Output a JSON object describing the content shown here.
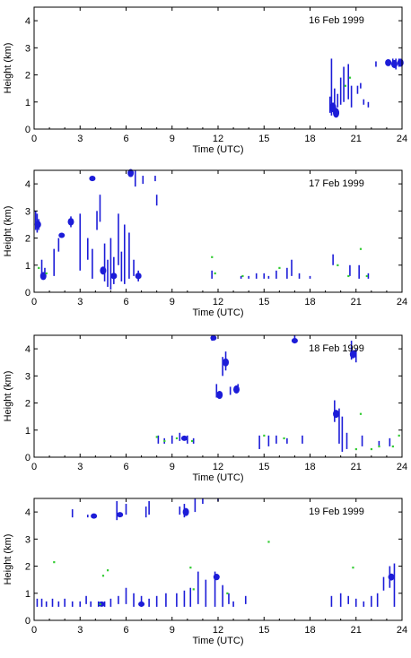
{
  "colors": {
    "echo": "#1c1cd8",
    "marker": "#33cc33",
    "frame": "#000000"
  },
  "chart_data": [
    {
      "type": "scatter",
      "annotation": "16 Feb 1999",
      "xlabel": "Time (UTC)",
      "ylabel": "Height (km)",
      "xlim": [
        0,
        24
      ],
      "ylim": [
        0,
        4.5
      ],
      "xticks": [
        "0",
        "3",
        "6",
        "9",
        "12",
        "15",
        "18",
        "21",
        "24"
      ],
      "yticks": [
        "0",
        "1",
        "2",
        "3",
        "4"
      ],
      "echo_columns": [
        [
          19.3,
          0.6,
          1.2
        ],
        [
          19.4,
          0.5,
          2.6
        ],
        [
          19.6,
          0.7,
          1.5
        ],
        [
          19.8,
          0.8,
          1.3
        ],
        [
          20.0,
          0.9,
          1.9
        ],
        [
          20.2,
          1.0,
          2.3
        ],
        [
          20.5,
          1.1,
          2.4
        ],
        [
          20.7,
          0.8,
          1.6
        ],
        [
          21.1,
          1.3,
          1.6
        ],
        [
          21.3,
          1.5,
          1.7
        ],
        [
          21.5,
          0.9,
          1.1
        ],
        [
          21.8,
          0.8,
          1.0
        ],
        [
          22.3,
          2.3,
          2.5
        ],
        [
          23.4,
          2.3,
          2.6
        ],
        [
          23.6,
          2.2,
          2.6
        ],
        [
          23.8,
          2.3,
          2.6
        ]
      ],
      "echo_blobs": [
        [
          19.5,
          0.8,
          0.18
        ],
        [
          19.7,
          0.6,
          0.18
        ],
        [
          23.1,
          2.45,
          0.13
        ],
        [
          23.5,
          2.4,
          0.15
        ],
        [
          23.9,
          2.45,
          0.15
        ]
      ],
      "markers": [
        [
          20.6,
          1.9
        ],
        [
          20.3,
          1.6
        ]
      ]
    },
    {
      "type": "scatter",
      "annotation": "17 Feb 1999",
      "xlabel": "Time (UTC)",
      "ylabel": "Height (km)",
      "xlim": [
        0,
        24
      ],
      "ylim": [
        0,
        4.5
      ],
      "xticks": [
        "0",
        "3",
        "6",
        "9",
        "12",
        "15",
        "18",
        "21",
        "24"
      ],
      "yticks": [
        "0",
        "1",
        "2",
        "3",
        "4"
      ],
      "echo_columns": [
        [
          0.1,
          2.3,
          3.0
        ],
        [
          0.2,
          2.2,
          2.9
        ],
        [
          0.3,
          2.3,
          2.7
        ],
        [
          0.5,
          0.5,
          1.2
        ],
        [
          0.7,
          0.5,
          0.9
        ],
        [
          1.3,
          0.6,
          1.6
        ],
        [
          1.6,
          1.5,
          2.0
        ],
        [
          2.4,
          2.4,
          2.8
        ],
        [
          3.0,
          0.8,
          2.9
        ],
        [
          3.5,
          1.2,
          2.0
        ],
        [
          3.8,
          0.5,
          1.6
        ],
        [
          4.1,
          2.3,
          3.0
        ],
        [
          4.3,
          2.6,
          3.6
        ],
        [
          4.6,
          0.4,
          1.8
        ],
        [
          4.8,
          0.2,
          1.2
        ],
        [
          5.0,
          0.1,
          2.0
        ],
        [
          5.2,
          0.3,
          1.3
        ],
        [
          5.5,
          1.0,
          2.9
        ],
        [
          5.7,
          0.4,
          1.5
        ],
        [
          5.9,
          0.3,
          2.5
        ],
        [
          6.2,
          0.5,
          2.2
        ],
        [
          6.5,
          0.6,
          1.2
        ],
        [
          6.8,
          0.4,
          0.8
        ],
        [
          6.6,
          3.9,
          4.5
        ],
        [
          7.1,
          4.0,
          4.3
        ],
        [
          7.9,
          4.1,
          4.3
        ],
        [
          8.0,
          3.2,
          3.6
        ],
        [
          11.6,
          0.5,
          0.8
        ],
        [
          13.5,
          0.5,
          0.6
        ],
        [
          14.0,
          0.5,
          0.6
        ],
        [
          14.5,
          0.5,
          0.7
        ],
        [
          15.0,
          0.5,
          0.7
        ],
        [
          15.3,
          0.5,
          0.6
        ],
        [
          15.8,
          0.5,
          0.8
        ],
        [
          16.5,
          0.5,
          0.9
        ],
        [
          16.8,
          0.6,
          1.2
        ],
        [
          17.3,
          0.5,
          0.7
        ],
        [
          18.0,
          0.5,
          0.6
        ],
        [
          19.5,
          1.0,
          1.4
        ],
        [
          20.6,
          0.6,
          1.0
        ],
        [
          21.2,
          0.5,
          1.0
        ],
        [
          21.8,
          0.5,
          0.7
        ]
      ],
      "echo_blobs": [
        [
          0.25,
          2.5,
          0.14
        ],
        [
          2.4,
          2.6,
          0.14
        ],
        [
          1.8,
          2.1,
          0.1
        ],
        [
          0.6,
          0.6,
          0.15
        ],
        [
          4.5,
          0.8,
          0.15
        ],
        [
          6.3,
          4.4,
          0.15
        ],
        [
          3.8,
          4.2,
          0.1
        ],
        [
          6.8,
          0.6,
          0.12
        ],
        [
          5.2,
          0.6,
          0.12
        ]
      ],
      "markers": [
        [
          0.8,
          0.7
        ],
        [
          0.3,
          0.9
        ],
        [
          11.6,
          1.3
        ],
        [
          11.8,
          0.7
        ],
        [
          13.6,
          0.6
        ],
        [
          16.0,
          0.9
        ],
        [
          19.8,
          1.0
        ],
        [
          20.5,
          0.6
        ],
        [
          21.3,
          1.6
        ],
        [
          21.7,
          0.6
        ]
      ]
    },
    {
      "type": "scatter",
      "annotation": "18 Feb 1999",
      "xlabel": "Time (UTC)",
      "ylabel": "Height (km)",
      "xlim": [
        0,
        24
      ],
      "ylim": [
        0,
        4.5
      ],
      "xticks": [
        "0",
        "3",
        "6",
        "9",
        "12",
        "15",
        "18",
        "21",
        "24"
      ],
      "yticks": [
        "0",
        "1",
        "2",
        "3",
        "4"
      ],
      "echo_columns": [
        [
          8.1,
          0.5,
          0.8
        ],
        [
          8.5,
          0.5,
          0.7
        ],
        [
          9.0,
          0.5,
          0.8
        ],
        [
          9.5,
          0.6,
          0.9
        ],
        [
          10.0,
          0.5,
          0.8
        ],
        [
          10.4,
          0.5,
          0.7
        ],
        [
          11.6,
          4.3,
          4.5
        ],
        [
          11.9,
          2.2,
          2.7
        ],
        [
          12.3,
          3.0,
          3.7
        ],
        [
          12.5,
          3.2,
          3.9
        ],
        [
          12.8,
          2.3,
          2.6
        ],
        [
          13.3,
          2.4,
          2.7
        ],
        [
          14.7,
          0.3,
          0.8
        ],
        [
          15.3,
          0.4,
          0.8
        ],
        [
          15.8,
          0.5,
          0.8
        ],
        [
          16.5,
          0.5,
          0.7
        ],
        [
          17.0,
          4.2,
          4.5
        ],
        [
          17.5,
          0.5,
          0.8
        ],
        [
          19.6,
          1.3,
          2.1
        ],
        [
          19.9,
          0.5,
          1.8
        ],
        [
          20.1,
          0.2,
          1.5
        ],
        [
          20.4,
          0.3,
          0.9
        ],
        [
          20.7,
          3.6,
          4.3
        ],
        [
          21.0,
          3.5,
          4.0
        ],
        [
          21.4,
          0.4,
          0.8
        ],
        [
          22.5,
          0.4,
          0.6
        ],
        [
          23.2,
          0.4,
          0.7
        ]
      ],
      "echo_blobs": [
        [
          12.1,
          2.3,
          0.15
        ],
        [
          12.5,
          3.5,
          0.15
        ],
        [
          13.2,
          2.5,
          0.15
        ],
        [
          11.7,
          4.4,
          0.1
        ],
        [
          20.8,
          3.8,
          0.15
        ],
        [
          19.7,
          1.6,
          0.15
        ],
        [
          17.0,
          4.3,
          0.1
        ],
        [
          9.8,
          0.7,
          0.1
        ]
      ],
      "markers": [
        [
          8.0,
          0.75
        ],
        [
          8.5,
          0.6
        ],
        [
          9.3,
          0.7
        ],
        [
          10.3,
          0.6
        ],
        [
          15.0,
          0.8
        ],
        [
          16.3,
          0.7
        ],
        [
          21.0,
          0.3
        ],
        [
          21.3,
          1.6
        ],
        [
          22.0,
          0.3
        ],
        [
          22.5,
          0.4
        ],
        [
          23.4,
          0.4
        ],
        [
          23.8,
          0.8
        ]
      ]
    },
    {
      "type": "scatter",
      "annotation": "19 Feb 1999",
      "xlabel": "Time (UTC)",
      "ylabel": "Height (km)",
      "xlim": [
        0,
        24
      ],
      "ylim": [
        0,
        4.5
      ],
      "xticks": [
        "0",
        "3",
        "6",
        "9",
        "12",
        "15",
        "18",
        "21",
        "24"
      ],
      "yticks": [
        "0",
        "1",
        "2",
        "3",
        "4"
      ],
      "echo_columns": [
        [
          0.2,
          0.5,
          0.8
        ],
        [
          0.5,
          0.5,
          0.8
        ],
        [
          0.8,
          0.5,
          0.7
        ],
        [
          1.2,
          0.5,
          0.8
        ],
        [
          1.6,
          0.5,
          0.7
        ],
        [
          2.0,
          0.5,
          0.8
        ],
        [
          2.5,
          0.5,
          0.7
        ],
        [
          3.0,
          0.5,
          0.7
        ],
        [
          3.4,
          0.6,
          0.9
        ],
        [
          3.7,
          0.5,
          0.7
        ],
        [
          4.2,
          0.5,
          0.7
        ],
        [
          4.6,
          0.5,
          0.7
        ],
        [
          5.0,
          0.5,
          0.8
        ],
        [
          5.5,
          0.6,
          0.9
        ],
        [
          6.0,
          0.6,
          1.2
        ],
        [
          6.5,
          0.5,
          1.0
        ],
        [
          7.0,
          0.5,
          0.9
        ],
        [
          7.5,
          0.5,
          0.8
        ],
        [
          8.0,
          0.5,
          0.9
        ],
        [
          8.6,
          0.5,
          1.0
        ],
        [
          9.3,
          0.5,
          1.0
        ],
        [
          9.8,
          0.5,
          1.1
        ],
        [
          10.2,
          0.5,
          1.2
        ],
        [
          10.7,
          0.6,
          1.8
        ],
        [
          11.2,
          0.5,
          1.5
        ],
        [
          11.8,
          0.5,
          1.8
        ],
        [
          12.3,
          0.5,
          1.3
        ],
        [
          12.7,
          0.6,
          1.0
        ],
        [
          13.0,
          0.5,
          0.7
        ],
        [
          13.8,
          0.6,
          0.9
        ],
        [
          2.5,
          3.8,
          4.1
        ],
        [
          3.5,
          3.8,
          3.9
        ],
        [
          5.4,
          3.7,
          4.4
        ],
        [
          6.0,
          3.9,
          4.3
        ],
        [
          7.3,
          3.8,
          4.2
        ],
        [
          7.5,
          3.9,
          4.4
        ],
        [
          9.5,
          3.9,
          4.2
        ],
        [
          9.8,
          3.8,
          4.3
        ],
        [
          10.5,
          4.0,
          4.5
        ],
        [
          11.0,
          4.3,
          4.5
        ],
        [
          12.0,
          4.4,
          4.5
        ],
        [
          19.4,
          0.5,
          0.9
        ],
        [
          20.0,
          0.5,
          1.0
        ],
        [
          20.5,
          0.6,
          0.9
        ],
        [
          21.0,
          0.5,
          0.8
        ],
        [
          21.5,
          0.5,
          0.7
        ],
        [
          22.0,
          0.5,
          0.9
        ],
        [
          22.4,
          0.5,
          1.0
        ],
        [
          22.8,
          1.1,
          1.6
        ],
        [
          23.2,
          1.2,
          2.0
        ],
        [
          23.5,
          0.5,
          2.1
        ]
      ],
      "echo_blobs": [
        [
          3.9,
          3.85,
          0.1
        ],
        [
          9.9,
          4.0,
          0.15
        ],
        [
          5.6,
          3.9,
          0.1
        ],
        [
          11.9,
          1.6,
          0.12
        ],
        [
          23.3,
          1.6,
          0.13
        ],
        [
          7.0,
          0.6,
          0.1
        ],
        [
          4.4,
          0.6,
          0.1
        ]
      ],
      "markers": [
        [
          1.3,
          2.15
        ],
        [
          4.5,
          1.65
        ],
        [
          4.8,
          1.85
        ],
        [
          10.2,
          1.95
        ],
        [
          10.4,
          1.15
        ],
        [
          15.3,
          2.9
        ],
        [
          20.8,
          1.95
        ],
        [
          4.3,
          0.6
        ],
        [
          12.6,
          1.0
        ]
      ]
    }
  ]
}
